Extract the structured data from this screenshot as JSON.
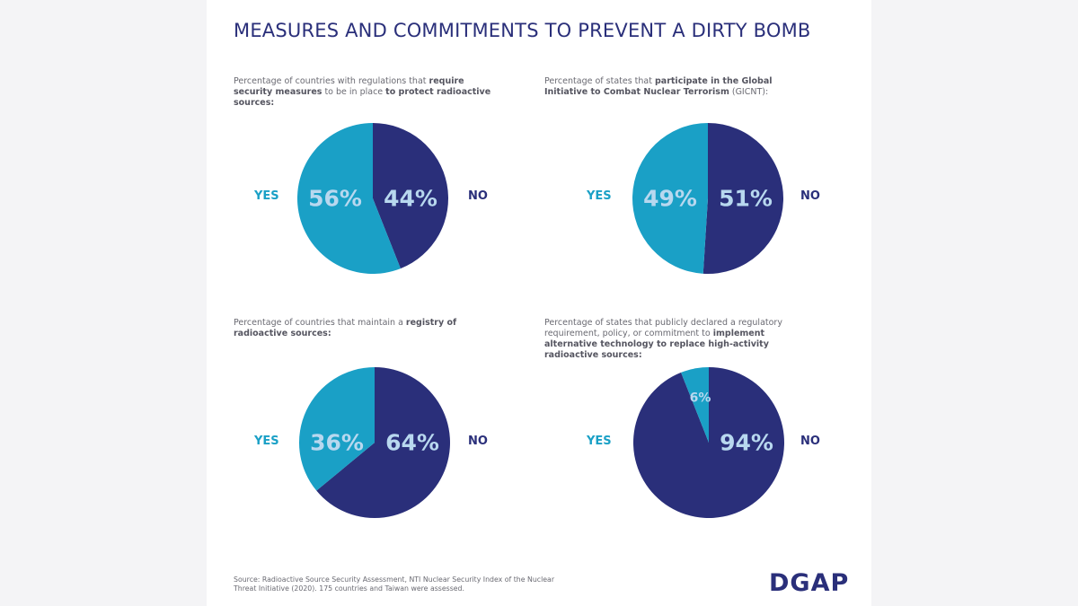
{
  "title": "MEASURES AND COMMITMENTS TO PREVENT A DIRTY BOMB",
  "colors": {
    "yes": "#1aa0c6",
    "no": "#2a2f7a",
    "label_on_slice": "#b8d8ef"
  },
  "chart_data": [
    {
      "type": "pie",
      "caption_parts": [
        {
          "text": "Percentage of countries with regulations that ",
          "bold": false
        },
        {
          "text": "require security measures",
          "bold": true
        },
        {
          "text": " to be in place ",
          "bold": false
        },
        {
          "text": "to protect radioactive sources:",
          "bold": true
        }
      ],
      "slices": [
        {
          "label": "YES",
          "value": 56,
          "value_label": "56%"
        },
        {
          "label": "NO",
          "value": 44,
          "value_label": "44%"
        }
      ]
    },
    {
      "type": "pie",
      "caption_parts": [
        {
          "text": "Percentage of states that ",
          "bold": false
        },
        {
          "text": "participate in the Global Initiative to Combat Nuclear Terrorism",
          "bold": true
        },
        {
          "text": " (GICNT):",
          "bold": false
        }
      ],
      "slices": [
        {
          "label": "YES",
          "value": 49,
          "value_label": "49%"
        },
        {
          "label": "NO",
          "value": 51,
          "value_label": "51%"
        }
      ]
    },
    {
      "type": "pie",
      "caption_parts": [
        {
          "text": "Percentage of countries that maintain a ",
          "bold": false
        },
        {
          "text": "registry of radioactive sources:",
          "bold": true
        }
      ],
      "slices": [
        {
          "label": "YES",
          "value": 36,
          "value_label": "36%"
        },
        {
          "label": "NO",
          "value": 64,
          "value_label": "64%"
        }
      ]
    },
    {
      "type": "pie",
      "caption_parts": [
        {
          "text": "Percentage of states that publicly declared a regulatory requirement, policy, or commitment to ",
          "bold": false
        },
        {
          "text": "implement alternative technology to replace high-activity radioactive sources:",
          "bold": true
        }
      ],
      "slices": [
        {
          "label": "YES",
          "value": 6,
          "value_label": "6%"
        },
        {
          "label": "NO",
          "value": 94,
          "value_label": "94%"
        }
      ]
    }
  ],
  "source": "Source: Radioactive Source Security Assessment, NTI Nuclear Security Index of the Nuclear Threat Initiative (2020). 175 countries and Taiwan were assessed.",
  "logo": "DGAP"
}
